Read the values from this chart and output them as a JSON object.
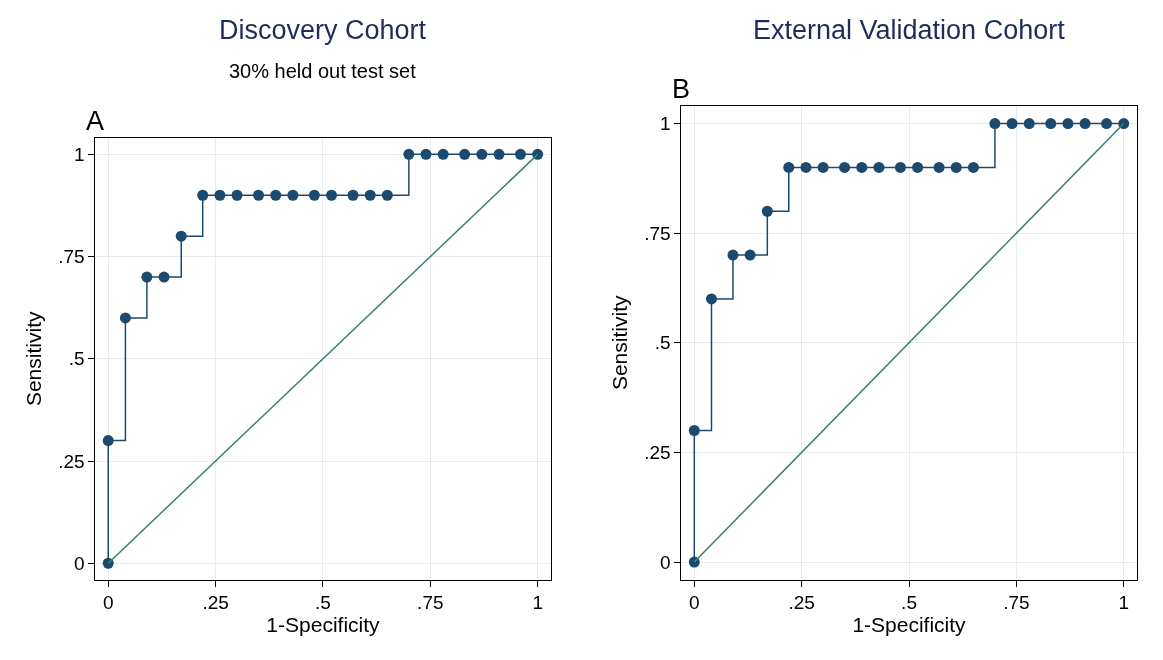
{
  "chart_data": [
    {
      "type": "step",
      "title": "Discovery Cohort",
      "subtitle": "30% held out test set",
      "xlabel": "1-Specificity",
      "ylabel": "Sensitivity",
      "annotations": [
        "A"
      ],
      "xlim": [
        -0.03,
        1.03
      ],
      "ylim": [
        -0.04,
        1.04
      ],
      "xticks": [
        0,
        {
          "value": 0.25,
          "label": ".25"
        },
        {
          "value": 0.5,
          "label": ".5"
        },
        {
          "value": 0.75,
          "label": ".75"
        },
        1
      ],
      "yticks": [
        0,
        {
          "value": 0.25,
          "label": ".25"
        },
        {
          "value": 0.5,
          "label": ".5"
        },
        {
          "value": 0.75,
          "label": ".75"
        },
        1
      ],
      "grid": true,
      "series": [
        {
          "color": "#1c4a6e",
          "marker": "circle",
          "x": [
            0,
            0,
            0.04,
            0.09,
            0.13,
            0.17,
            0.22,
            0.26,
            0.3,
            0.35,
            0.39,
            0.43,
            0.48,
            0.52,
            0.57,
            0.61,
            0.65,
            0.7,
            0.74,
            0.78,
            0.83,
            0.87,
            0.91,
            0.96,
            1
          ],
          "values": [
            0,
            0.3,
            0.6,
            0.7,
            0.7,
            0.8,
            0.9,
            0.9,
            0.9,
            0.9,
            0.9,
            0.9,
            0.9,
            0.9,
            0.9,
            0.9,
            0.9,
            1,
            1,
            1,
            1,
            1,
            1,
            1,
            1
          ]
        },
        {
          "type": "line",
          "color": "#3a8170",
          "marker": "none",
          "x": [
            0,
            1
          ],
          "values": [
            0,
            1
          ]
        }
      ]
    },
    {
      "type": "step",
      "title": "External Validation Cohort",
      "xlabel": "1-Specificity",
      "ylabel": "Sensitivity",
      "annotations": [
        "B"
      ],
      "xlim": [
        -0.03,
        1.03
      ],
      "ylim": [
        -0.04,
        1.04
      ],
      "xticks": [
        0,
        {
          "value": 0.25,
          "label": ".25"
        },
        {
          "value": 0.5,
          "label": ".5"
        },
        {
          "value": 0.75,
          "label": ".75"
        },
        1
      ],
      "yticks": [
        0,
        {
          "value": 0.25,
          "label": ".25"
        },
        {
          "value": 0.5,
          "label": ".5"
        },
        {
          "value": 0.75,
          "label": ".75"
        },
        1
      ],
      "grid": true,
      "series": [
        {
          "color": "#1c4a6e",
          "marker": "circle",
          "x": [
            0,
            0,
            0.04,
            0.09,
            0.13,
            0.17,
            0.22,
            0.26,
            0.3,
            0.35,
            0.39,
            0.43,
            0.48,
            0.52,
            0.57,
            0.61,
            0.65,
            0.7,
            0.74,
            0.78,
            0.83,
            0.87,
            0.91,
            0.96,
            1
          ],
          "values": [
            0,
            0.3,
            0.6,
            0.7,
            0.7,
            0.8,
            0.9,
            0.9,
            0.9,
            0.9,
            0.9,
            0.9,
            0.9,
            0.9,
            0.9,
            0.9,
            0.9,
            1,
            1,
            1,
            1,
            1,
            1,
            1,
            1
          ]
        },
        {
          "type": "line",
          "color": "#3a8170",
          "marker": "none",
          "x": [
            0,
            1
          ],
          "values": [
            0,
            1
          ]
        }
      ]
    }
  ]
}
